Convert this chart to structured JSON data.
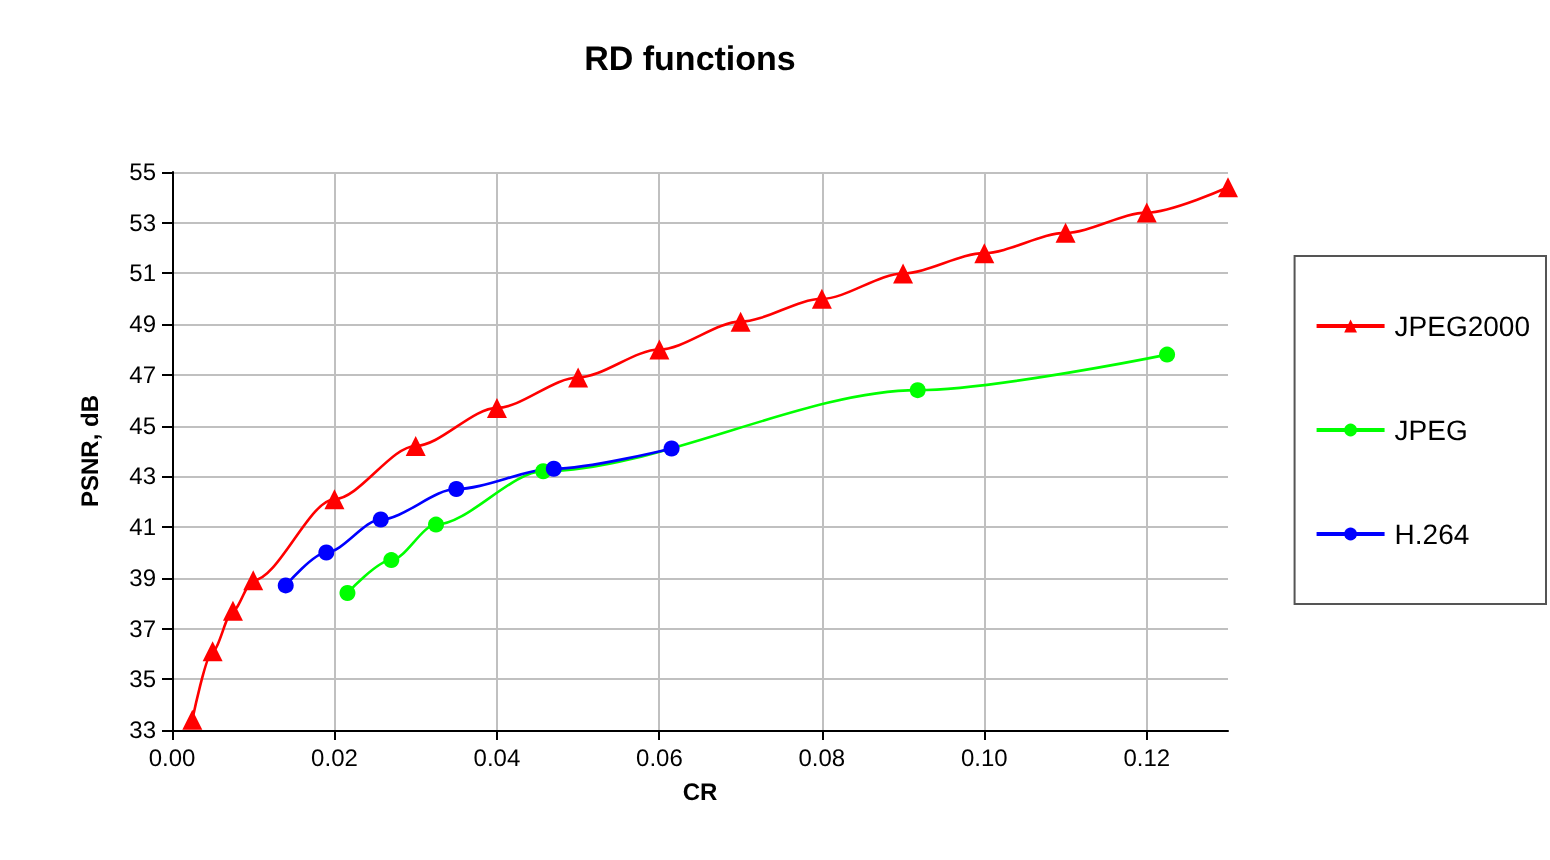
{
  "chart_data": {
    "type": "line",
    "title": "RD functions",
    "xlabel": "CR",
    "ylabel": "PSNR, dB",
    "xlim": [
      0,
      0.13
    ],
    "xticks": [
      {
        "value": 0,
        "label": "0.00"
      },
      {
        "value": 0.02,
        "label": "0.02"
      },
      {
        "value": 0.04,
        "label": "0.04"
      },
      {
        "value": 0.06,
        "label": "0.06"
      },
      {
        "value": 0.08,
        "label": "0.08"
      },
      {
        "value": 0.1,
        "label": "0.10"
      },
      {
        "value": 0.12,
        "label": "0.12"
      }
    ],
    "ylim": [
      33,
      55
    ],
    "yticks": [
      33,
      35,
      37,
      39,
      41,
      43,
      45,
      47,
      49,
      51,
      53,
      55
    ],
    "grid": true,
    "legend": "right",
    "series": [
      {
        "name": "JPEG2000",
        "color": "#ff0000",
        "marker": "triangle",
        "x": [
          0.0025,
          0.005,
          0.0075,
          0.01,
          0.02,
          0.03,
          0.04,
          0.05,
          0.06,
          0.07,
          0.08,
          0.09,
          0.1,
          0.11,
          0.12,
          0.13
        ],
        "values": [
          33.4,
          36.1,
          37.7,
          38.9,
          42.1,
          44.2,
          45.7,
          46.9,
          48.0,
          49.1,
          50.0,
          51.0,
          51.8,
          52.6,
          53.4,
          54.4
        ]
      },
      {
        "name": "JPEG",
        "color": "#00ff00",
        "marker": "circle",
        "x": [
          0.0216,
          0.027,
          0.0325,
          0.0457,
          0.0918,
          0.1225
        ],
        "values": [
          38.4,
          39.7,
          41.1,
          43.2,
          46.4,
          47.8
        ]
      },
      {
        "name": "H.264",
        "color": "#0000ff",
        "marker": "circle",
        "x": [
          0.014,
          0.019,
          0.0257,
          0.035,
          0.047,
          0.0615
        ],
        "values": [
          38.7,
          40.0,
          41.3,
          42.5,
          43.3,
          44.1
        ]
      }
    ]
  }
}
